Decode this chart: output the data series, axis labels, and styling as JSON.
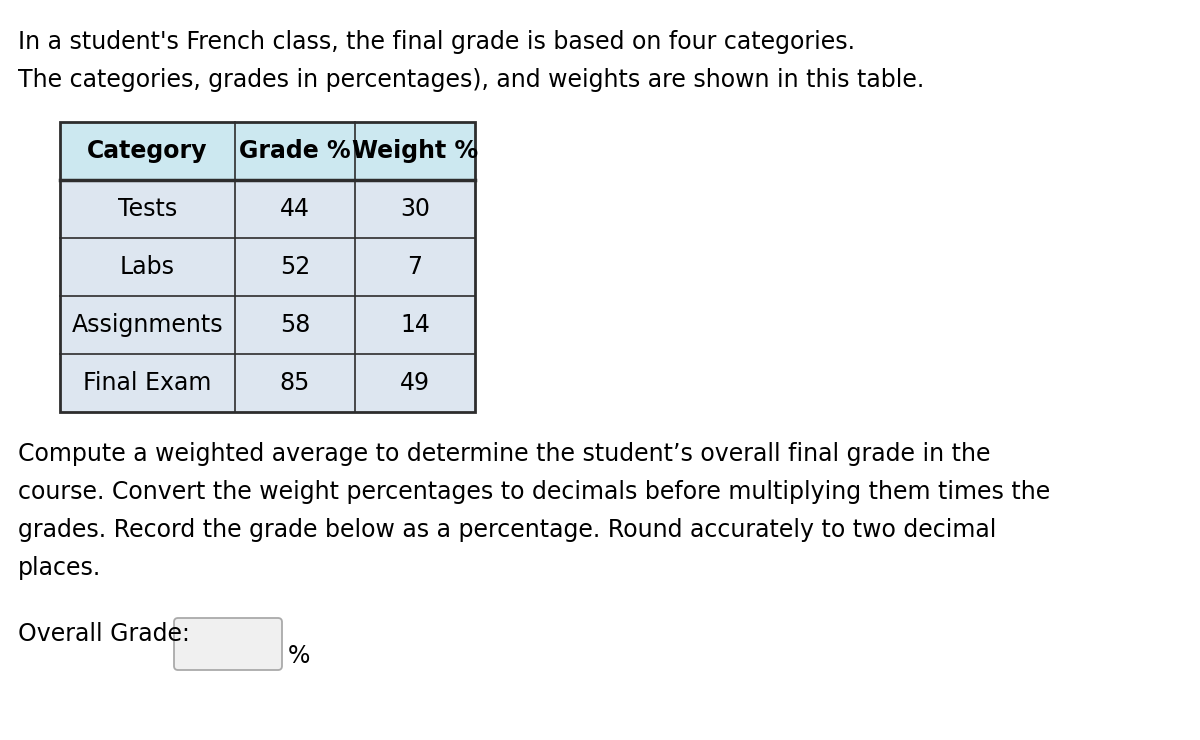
{
  "line1": "In a student's French class, the final grade is based on four categories.",
  "line2": "The categories, grades in percentages), and weights are shown in this table.",
  "table_headers": [
    "Category",
    "Grade %",
    "Weight %"
  ],
  "table_rows": [
    [
      "Tests",
      "44",
      "30"
    ],
    [
      "Labs",
      "52",
      "7"
    ],
    [
      "Assignments",
      "58",
      "14"
    ],
    [
      "Final Exam",
      "85",
      "49"
    ]
  ],
  "paragraph_lines": [
    "Compute a weighted average to determine the student’s overall final grade in the",
    "course. Convert the weight percentages to decimals before multiplying them times the",
    "grades. Record the grade below as a percentage. Round accurately to two decimal",
    "places."
  ],
  "label": "Overall Grade:",
  "suffix": "%",
  "bg_color": "#ffffff",
  "text_color": "#000000",
  "table_border_color": "#2d2d2d",
  "header_bg": "#cce8f0",
  "row_bg": "#dde6f0",
  "font_size_body": 17,
  "font_size_table": 17,
  "box_border_color": "#aaaaaa",
  "box_fill_color": "#f0f0f0"
}
